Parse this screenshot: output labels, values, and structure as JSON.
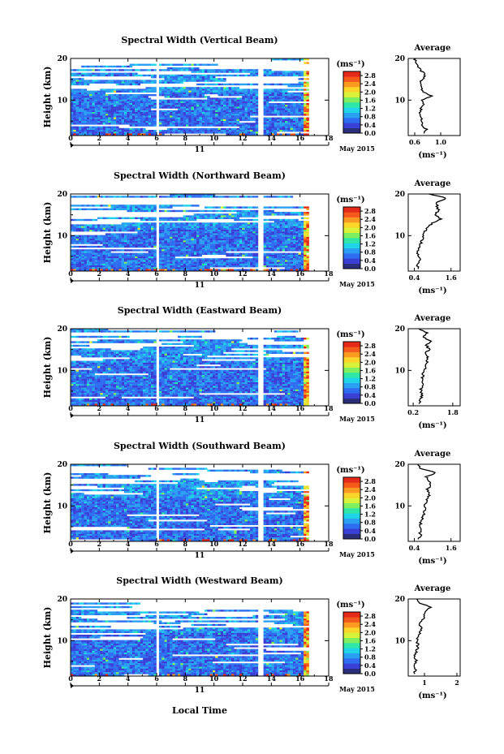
{
  "figure": {
    "x_axis_label": "Local Time",
    "date_label": "May 2015",
    "day_marker": "11"
  },
  "colorbar": {
    "unit": "(ms⁻¹)",
    "tick_labels": [
      "0.0",
      "0.4",
      "0.8",
      "1.2",
      "1.6",
      "2.0",
      "2.4",
      "2.8"
    ],
    "colors": [
      "#2b2f7a",
      "#3a3fd6",
      "#2f6df0",
      "#2aa0f2",
      "#1fd3e8",
      "#2ee6a8",
      "#7ef060",
      "#d8f23a",
      "#fbd52a",
      "#fb9a20",
      "#f55a1c",
      "#e52a1a"
    ]
  },
  "chart_data": [
    {
      "type": "heatmap",
      "title": "Spectral Width (Vertical Beam)",
      "xlabel": "",
      "ylabel": "Height (km)",
      "xlim": [
        0,
        18
      ],
      "ylim": [
        1.5,
        20
      ],
      "x_ticks": [
        "0",
        "2",
        "4",
        "6",
        "8",
        "10",
        "12",
        "14",
        "16",
        "18"
      ],
      "y_ticks": [
        "10",
        "20"
      ],
      "data_gaps_hours": [
        [
          5.8,
          6.1
        ],
        [
          12.9,
          13.3
        ],
        [
          16.6,
          18
        ]
      ],
      "clim": [
        0,
        3.0
      ],
      "unit": "(ms⁻¹)",
      "average_profile": {
        "title": "Average",
        "xlabel": "(ms⁻¹)",
        "x_ticks": [
          "0.6",
          "1.0"
        ],
        "xlim": [
          0.5,
          1.3
        ],
        "y_ticks": [
          "10",
          "20"
        ],
        "heights_km": [
          2,
          3,
          4,
          5,
          6,
          7,
          8,
          9,
          10,
          11,
          12,
          13,
          14,
          15,
          16,
          17,
          18,
          19,
          20
        ],
        "values": [
          0.75,
          0.78,
          0.7,
          0.72,
          0.7,
          0.68,
          0.7,
          0.74,
          0.72,
          0.85,
          0.72,
          0.7,
          0.68,
          0.72,
          0.76,
          0.7,
          0.66,
          0.62,
          0.6
        ]
      }
    },
    {
      "type": "heatmap",
      "title": "Spectral Width (Northward Beam)",
      "xlabel": "",
      "ylabel": "Height (km)",
      "xlim": [
        0,
        18
      ],
      "ylim": [
        1.5,
        20
      ],
      "x_ticks": [
        "0",
        "2",
        "4",
        "6",
        "8",
        "10",
        "12",
        "14",
        "16",
        "18"
      ],
      "y_ticks": [
        "10",
        "20"
      ],
      "data_gaps_hours": [
        [
          5.8,
          6.1
        ],
        [
          12.9,
          13.3
        ],
        [
          16.6,
          18
        ]
      ],
      "clim": [
        0,
        3.0
      ],
      "unit": "(ms⁻¹)",
      "average_profile": {
        "title": "Average",
        "xlabel": "(ms⁻¹)",
        "x_ticks": [
          "0.4",
          "1.6"
        ],
        "xlim": [
          0.2,
          1.9
        ],
        "y_ticks": [
          "10",
          "20"
        ],
        "heights_km": [
          2,
          3,
          4,
          5,
          6,
          7,
          8,
          9,
          10,
          11,
          12,
          13,
          14,
          15,
          16,
          17,
          18,
          19,
          20
        ],
        "values": [
          0.55,
          0.5,
          0.6,
          0.5,
          0.52,
          0.55,
          0.6,
          0.65,
          0.7,
          0.75,
          0.8,
          1.0,
          1.3,
          1.05,
          1.2,
          1.15,
          1.1,
          1.45,
          0.9
        ]
      }
    },
    {
      "type": "heatmap",
      "title": "Spectral Width (Eastward Beam)",
      "xlabel": "",
      "ylabel": "Height (km)",
      "xlim": [
        0,
        18
      ],
      "ylim": [
        1.5,
        20
      ],
      "x_ticks": [
        "0",
        "2",
        "4",
        "6",
        "8",
        "10",
        "12",
        "14",
        "16",
        "18"
      ],
      "y_ticks": [
        "10",
        "20"
      ],
      "data_gaps_hours": [
        [
          5.8,
          6.1
        ],
        [
          12.9,
          13.3
        ],
        [
          16.6,
          18
        ]
      ],
      "clim": [
        0,
        3.0
      ],
      "unit": "(ms⁻¹)",
      "average_profile": {
        "title": "Average",
        "xlabel": "(ms⁻¹)",
        "x_ticks": [
          "0.2",
          "1.8"
        ],
        "xlim": [
          0.0,
          2.1
        ],
        "y_ticks": [
          "10",
          "20"
        ],
        "heights_km": [
          2,
          3,
          4,
          5,
          6,
          7,
          8,
          9,
          10,
          11,
          12,
          13,
          14,
          15,
          16,
          17,
          18,
          19,
          20
        ],
        "values": [
          0.45,
          0.5,
          0.55,
          0.5,
          0.55,
          0.6,
          0.55,
          0.6,
          0.65,
          0.7,
          0.75,
          0.8,
          0.7,
          0.85,
          0.75,
          0.9,
          0.6,
          0.75,
          0.45
        ]
      }
    },
    {
      "type": "heatmap",
      "title": "Spectral Width (Southward Beam)",
      "xlabel": "",
      "ylabel": "Height (km)",
      "xlim": [
        0,
        18
      ],
      "ylim": [
        1.5,
        20
      ],
      "x_ticks": [
        "0",
        "2",
        "4",
        "6",
        "8",
        "10",
        "12",
        "14",
        "16",
        "18"
      ],
      "y_ticks": [
        "10",
        "20"
      ],
      "data_gaps_hours": [
        [
          5.8,
          6.1
        ],
        [
          12.9,
          13.3
        ],
        [
          16.6,
          18
        ]
      ],
      "clim": [
        0,
        3.0
      ],
      "unit": "(ms⁻¹)",
      "average_profile": {
        "title": "Average",
        "xlabel": "(ms⁻¹)",
        "x_ticks": [
          "0.4",
          "1.6"
        ],
        "xlim": [
          0.2,
          1.9
        ],
        "y_ticks": [
          "10",
          "20"
        ],
        "heights_km": [
          2,
          3,
          4,
          5,
          6,
          7,
          8,
          9,
          10,
          11,
          12,
          13,
          14,
          15,
          16,
          17,
          18,
          19,
          20
        ],
        "values": [
          0.55,
          0.6,
          0.58,
          0.62,
          0.6,
          0.65,
          0.7,
          0.75,
          0.72,
          0.8,
          0.85,
          0.9,
          0.82,
          0.95,
          0.88,
          0.8,
          1.1,
          0.6,
          0.5
        ]
      }
    },
    {
      "type": "heatmap",
      "title": "Spectral Width (Westward Beam)",
      "xlabel": "Local Time",
      "ylabel": "Height (km)",
      "xlim": [
        0,
        18
      ],
      "ylim": [
        1.5,
        20
      ],
      "x_ticks": [
        "0",
        "2",
        "4",
        "6",
        "8",
        "10",
        "12",
        "14",
        "16",
        "18"
      ],
      "y_ticks": [
        "10",
        "20"
      ],
      "data_gaps_hours": [
        [
          5.8,
          6.1
        ],
        [
          12.9,
          13.3
        ],
        [
          16.6,
          18
        ]
      ],
      "clim": [
        0,
        3.0
      ],
      "unit": "(ms⁻¹)",
      "average_profile": {
        "title": "Average",
        "xlabel": "(ms⁻¹)",
        "x_ticks": [
          "1",
          "2"
        ],
        "xlim": [
          0.5,
          2.1
        ],
        "y_ticks": [
          "10",
          "20"
        ],
        "heights_km": [
          2,
          3,
          4,
          5,
          6,
          7,
          8,
          9,
          10,
          11,
          12,
          13,
          14,
          15,
          16,
          17,
          18,
          19,
          20
        ],
        "values": [
          0.7,
          0.72,
          0.68,
          0.75,
          0.7,
          0.72,
          0.78,
          0.8,
          0.76,
          0.82,
          0.85,
          0.9,
          0.85,
          0.95,
          1.0,
          1.05,
          1.2,
          0.85,
          0.75
        ]
      }
    }
  ]
}
